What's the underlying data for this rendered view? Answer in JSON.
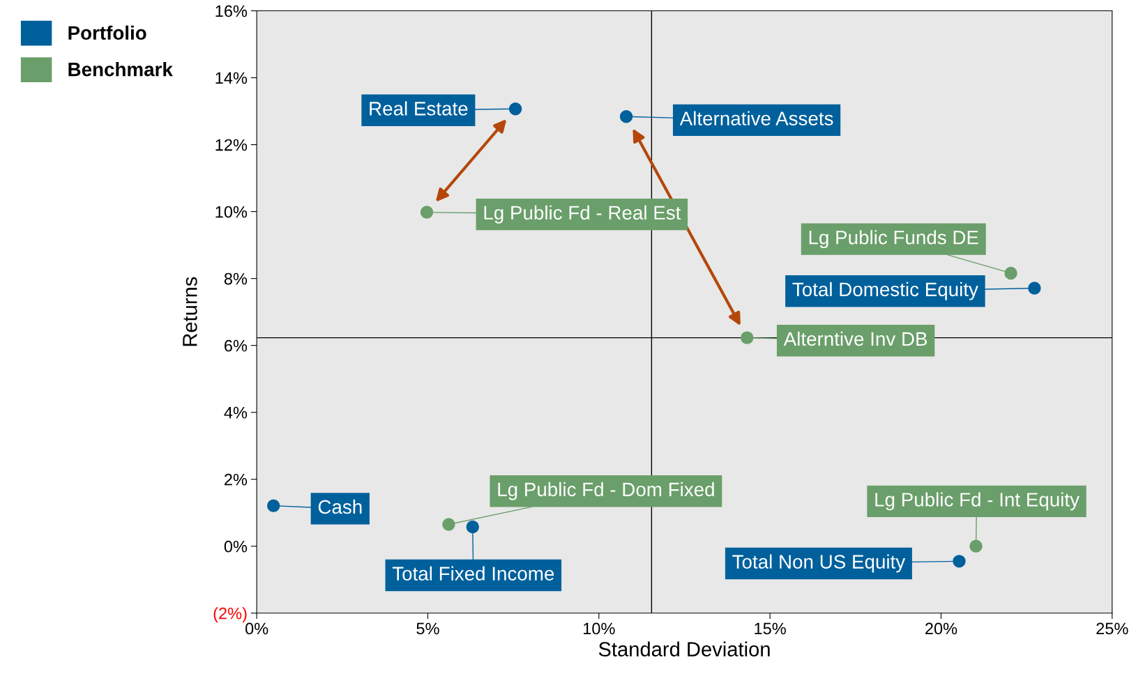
{
  "chart_data": {
    "type": "scatter",
    "xlabel": "Standard Deviation",
    "ylabel": "Returns",
    "series": [
      {
        "name": "Portfolio",
        "color": "#00609c",
        "x": [
          7.56,
          10.8,
          22.73,
          0.49,
          6.31,
          20.53
        ],
        "values": [
          13.07,
          12.84,
          7.71,
          1.21,
          0.58,
          -0.45
        ]
      },
      {
        "name": "Benchmark",
        "color": "#6a9e6a",
        "x": [
          4.97,
          22.04,
          14.33,
          5.61,
          21.02
        ],
        "values": [
          9.98,
          8.16,
          6.23,
          0.65,
          0.0
        ]
      }
    ],
    "annotations": [
      {
        "text": "Real Estate",
        "x": 7.56,
        "y": 13.07
      },
      {
        "text": "Alternative Assets",
        "x": 10.8,
        "y": 12.84
      },
      {
        "text": "Lg Public Fd - Real Est",
        "x": 4.97,
        "y": 9.98
      },
      {
        "text": "Lg Public Funds DE",
        "x": 22.04,
        "y": 8.16
      },
      {
        "text": "Total Domestic Equity",
        "x": 22.73,
        "y": 7.71
      },
      {
        "text": "Alterntive Inv DB",
        "x": 14.33,
        "y": 6.23
      },
      {
        "text": "Cash",
        "x": 0.49,
        "y": 1.21
      },
      {
        "text": "Lg Public Fd - Dom Fixed",
        "x": 5.61,
        "y": 0.65
      },
      {
        "text": "Total Fixed Income",
        "x": 6.31,
        "y": 0.58
      },
      {
        "text": "Lg Public Fd - Int Equity",
        "x": 21.02,
        "y": 0.0
      },
      {
        "text": "Total Non US Equity",
        "x": 20.53,
        "y": -0.45
      }
    ],
    "ref_lines": [
      {
        "axis": "x",
        "value": 11.54,
        "color": "#000000"
      },
      {
        "axis": "y",
        "value": 6.23,
        "color": "#000000"
      }
    ],
    "xlim": [
      0,
      25
    ],
    "xticks": [
      {
        "value": 0,
        "label": "0%"
      },
      {
        "value": 5,
        "label": "5%"
      },
      {
        "value": 10,
        "label": "10%"
      },
      {
        "value": 15,
        "label": "15%"
      },
      {
        "value": 20,
        "label": "20%"
      },
      {
        "value": 25,
        "label": "25%"
      }
    ],
    "ylim": [
      -2,
      16
    ],
    "yticks": [
      {
        "value": -2,
        "label": "(2%)"
      },
      {
        "value": 0,
        "label": "0%"
      },
      {
        "value": 2,
        "label": "2%"
      },
      {
        "value": 4,
        "label": "4%"
      },
      {
        "value": 6,
        "label": "6%"
      },
      {
        "value": 8,
        "label": "8%"
      },
      {
        "value": 10,
        "label": "10%"
      },
      {
        "value": 12,
        "label": "12%"
      },
      {
        "value": 14,
        "label": "14%"
      },
      {
        "value": 16,
        "label": "16%"
      }
    ],
    "grid": false,
    "legend": "top left",
    "marker": "circle"
  }
}
